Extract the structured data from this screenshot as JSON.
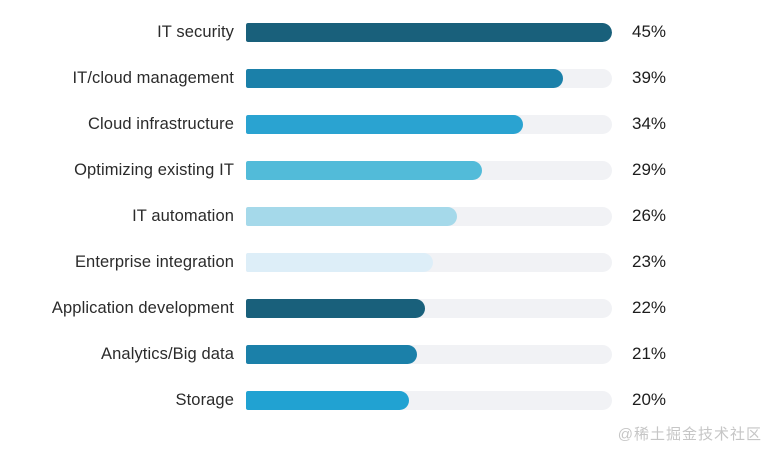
{
  "chart_data": {
    "type": "bar",
    "orientation": "horizontal",
    "title": "",
    "xlabel": "",
    "ylabel": "",
    "xlim": [
      0,
      45
    ],
    "grid": false,
    "legend": "none",
    "categories": [
      "IT security",
      "IT/cloud management",
      "Cloud infrastructure",
      "Optimizing existing IT",
      "IT automation",
      "Enterprise integration",
      "Application development",
      "Analytics/Big data",
      "Storage"
    ],
    "values": [
      45,
      39,
      34,
      29,
      26,
      23,
      22,
      21,
      20
    ],
    "value_labels": [
      "45%",
      "39%",
      "34%",
      "29%",
      "26%",
      "23%",
      "22%",
      "21%",
      "20%"
    ],
    "bar_colors": [
      "#19607b",
      "#1b80a9",
      "#2aa3d1",
      "#52bbd9",
      "#a5d9ea",
      "#ddeef8",
      "#19607b",
      "#1b80a9",
      "#21a2d2"
    ],
    "track_color": "#f1f2f5"
  },
  "watermark": {
    "text": "@稀土掘金技术社区",
    "color": "#c6c6c6"
  }
}
